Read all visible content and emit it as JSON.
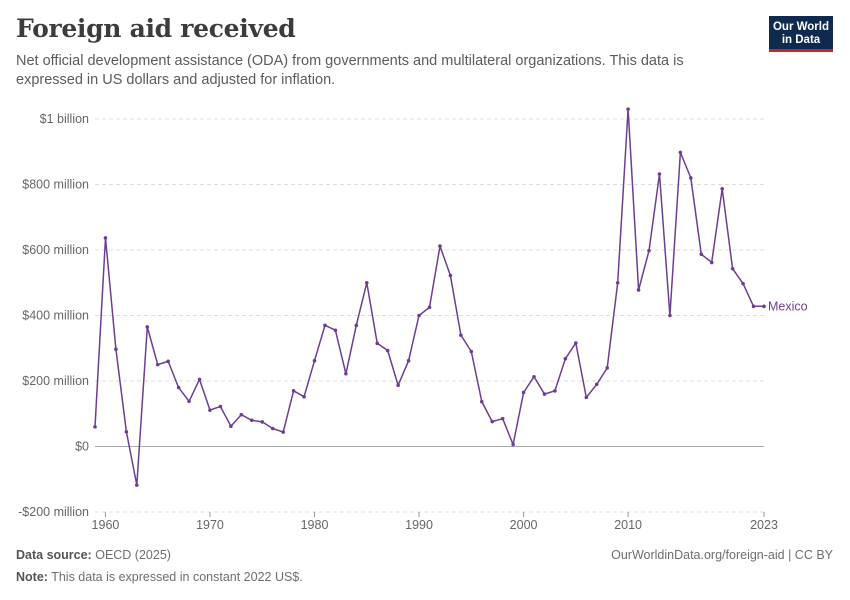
{
  "header": {
    "title": "Foreign aid received",
    "subtitle": "Net official development assistance (ODA) from governments and multilateral organizations. This data is expressed in US dollars and adjusted for inflation."
  },
  "logo": {
    "line1": "Our World",
    "line2": "in Data"
  },
  "footer": {
    "source_label": "Data source:",
    "source_value": "OECD (2025)",
    "note_label": "Note:",
    "note_value": "This data is expressed in constant 2022 US$.",
    "url": "OurWorldinData.org/foreign-aid",
    "license": " | CC BY"
  },
  "colors": {
    "series": "#6d3e91",
    "grid": "#dddddd",
    "zero_line": "#aaaaaa",
    "axis_text": "#666666"
  },
  "chart_data": {
    "type": "line",
    "title": "Foreign aid received",
    "ylim": [
      -200000000,
      1000000000
    ],
    "xlim": [
      1959,
      2023
    ],
    "y_ticks": [
      {
        "value": -200000000,
        "label": "-$200 million"
      },
      {
        "value": 0,
        "label": "$0"
      },
      {
        "value": 200000000,
        "label": "$200 million"
      },
      {
        "value": 400000000,
        "label": "$400 million"
      },
      {
        "value": 600000000,
        "label": "$600 million"
      },
      {
        "value": 800000000,
        "label": "$800 million"
      },
      {
        "value": 1000000000,
        "label": "$1 billion"
      }
    ],
    "x_ticks": [
      1960,
      1970,
      1980,
      1990,
      2000,
      2010,
      2023
    ],
    "grid": true,
    "series": [
      {
        "name": "Mexico",
        "x": [
          1959,
          1960,
          1961,
          1962,
          1963,
          1964,
          1965,
          1966,
          1967,
          1968,
          1969,
          1970,
          1971,
          1972,
          1973,
          1974,
          1975,
          1976,
          1977,
          1978,
          1979,
          1980,
          1981,
          1982,
          1983,
          1984,
          1985,
          1986,
          1987,
          1988,
          1989,
          1990,
          1991,
          1992,
          1993,
          1994,
          1995,
          1996,
          1997,
          1998,
          1999,
          2000,
          2001,
          2002,
          2003,
          2004,
          2005,
          2006,
          2007,
          2008,
          2009,
          2010,
          2011,
          2012,
          2013,
          2014,
          2015,
          2016,
          2017,
          2018,
          2019,
          2020,
          2021,
          2022,
          2023
        ],
        "values": [
          60000000,
          637000000,
          297000000,
          45000000,
          -118000000,
          365000000,
          250000000,
          260000000,
          180000000,
          138000000,
          205000000,
          111000000,
          122000000,
          62000000,
          97000000,
          80000000,
          75000000,
          55000000,
          44000000,
          170000000,
          152000000,
          262000000,
          370000000,
          355000000,
          222000000,
          370000000,
          500000000,
          315000000,
          293000000,
          187000000,
          262000000,
          400000000,
          425000000,
          612000000,
          522000000,
          340000000,
          290000000,
          137000000,
          76000000,
          85000000,
          6000000,
          165000000,
          213000000,
          160000000,
          170000000,
          268000000,
          316000000,
          150000000,
          190000000,
          240000000,
          500000000,
          1030000000,
          478000000,
          598000000,
          832000000,
          400000000,
          898000000,
          820000000,
          587000000,
          562000000,
          787000000,
          543000000,
          497000000,
          428000000,
          428000000
        ]
      }
    ]
  }
}
